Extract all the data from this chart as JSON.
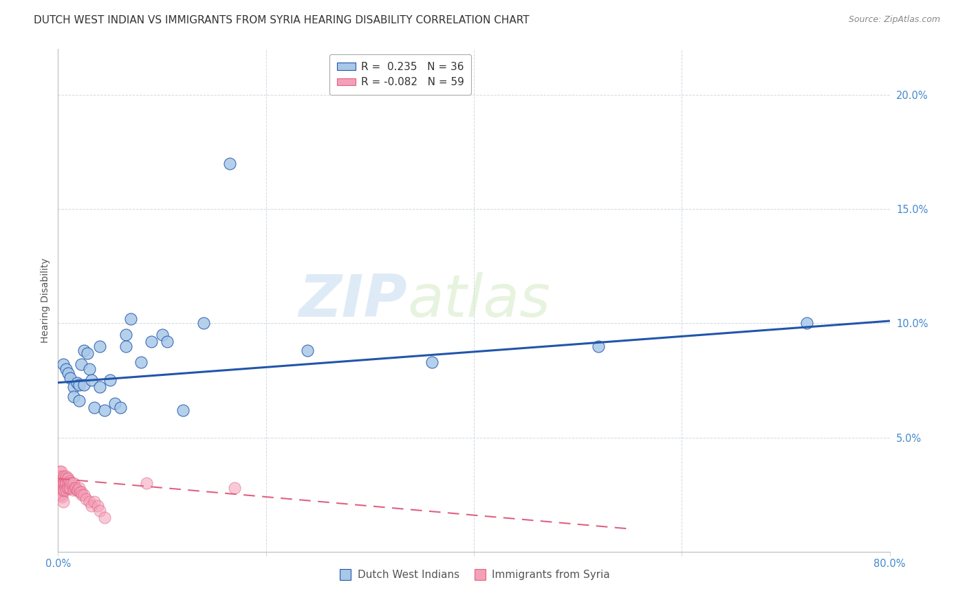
{
  "title": "DUTCH WEST INDIAN VS IMMIGRANTS FROM SYRIA HEARING DISABILITY CORRELATION CHART",
  "source": "Source: ZipAtlas.com",
  "xlabel_range": [
    0.0,
    0.8
  ],
  "ylabel_range": [
    0.0,
    0.22
  ],
  "legend1_R": "0.235",
  "legend1_N": "36",
  "legend2_R": "-0.082",
  "legend2_N": "59",
  "blue_color": "#a8c8e8",
  "pink_color": "#f4a0b8",
  "line_blue": "#2255aa",
  "line_pink": "#e06080",
  "watermark_zip": "ZIP",
  "watermark_atlas": "atlas",
  "blue_scatter_x": [
    0.005,
    0.008,
    0.01,
    0.012,
    0.015,
    0.015,
    0.018,
    0.02,
    0.02,
    0.022,
    0.025,
    0.025,
    0.028,
    0.03,
    0.032,
    0.035,
    0.04,
    0.04,
    0.045,
    0.05,
    0.055,
    0.06,
    0.065,
    0.065,
    0.07,
    0.08,
    0.09,
    0.1,
    0.105,
    0.12,
    0.14,
    0.165,
    0.24,
    0.36,
    0.52,
    0.72
  ],
  "blue_scatter_y": [
    0.082,
    0.08,
    0.078,
    0.076,
    0.072,
    0.068,
    0.074,
    0.073,
    0.066,
    0.082,
    0.088,
    0.073,
    0.087,
    0.08,
    0.075,
    0.063,
    0.09,
    0.072,
    0.062,
    0.075,
    0.065,
    0.063,
    0.095,
    0.09,
    0.102,
    0.083,
    0.092,
    0.095,
    0.092,
    0.062,
    0.1,
    0.17,
    0.088,
    0.083,
    0.09,
    0.1
  ],
  "pink_scatter_x": [
    0.001,
    0.001,
    0.001,
    0.002,
    0.002,
    0.002,
    0.002,
    0.003,
    0.003,
    0.003,
    0.003,
    0.004,
    0.004,
    0.004,
    0.004,
    0.005,
    0.005,
    0.005,
    0.005,
    0.006,
    0.006,
    0.006,
    0.007,
    0.007,
    0.007,
    0.008,
    0.008,
    0.008,
    0.009,
    0.009,
    0.01,
    0.01,
    0.01,
    0.011,
    0.011,
    0.012,
    0.012,
    0.013,
    0.014,
    0.015,
    0.015,
    0.016,
    0.017,
    0.018,
    0.019,
    0.02,
    0.021,
    0.022,
    0.023,
    0.025,
    0.027,
    0.03,
    0.032,
    0.035,
    0.038,
    0.04,
    0.045,
    0.085,
    0.17
  ],
  "pink_scatter_y": [
    0.03,
    0.033,
    0.028,
    0.032,
    0.035,
    0.028,
    0.025,
    0.031,
    0.035,
    0.028,
    0.025,
    0.033,
    0.03,
    0.027,
    0.024,
    0.032,
    0.03,
    0.027,
    0.022,
    0.033,
    0.03,
    0.027,
    0.032,
    0.03,
    0.028,
    0.033,
    0.03,
    0.027,
    0.032,
    0.028,
    0.032,
    0.03,
    0.028,
    0.031,
    0.028,
    0.03,
    0.028,
    0.03,
    0.028,
    0.03,
    0.027,
    0.028,
    0.028,
    0.027,
    0.027,
    0.028,
    0.026,
    0.026,
    0.025,
    0.025,
    0.023,
    0.022,
    0.02,
    0.022,
    0.02,
    0.018,
    0.015,
    0.03,
    0.028
  ],
  "blue_line_x0": 0.0,
  "blue_line_x1": 0.8,
  "blue_line_y0": 0.074,
  "blue_line_y1": 0.101,
  "pink_line_x0": 0.0,
  "pink_line_x1": 0.55,
  "pink_line_y0": 0.032,
  "pink_line_y1": 0.01,
  "grid_color": "#d0d8e0",
  "background_color": "#ffffff",
  "title_fontsize": 11,
  "tick_fontsize": 10.5,
  "legend_fontsize": 11,
  "source_fontsize": 9,
  "ylabel": "Hearing Disability"
}
